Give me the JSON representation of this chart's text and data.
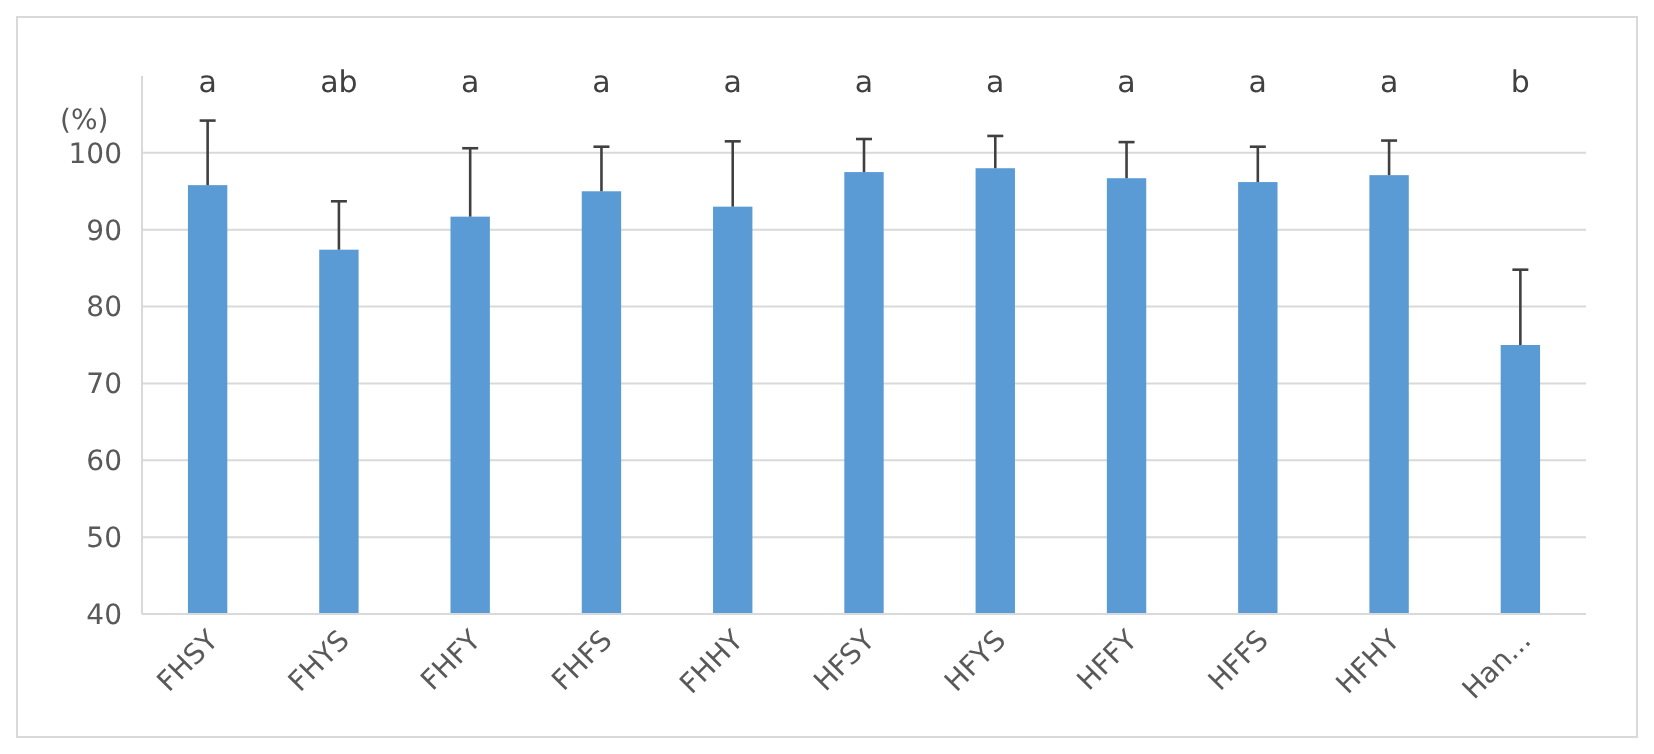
{
  "chart_data": {
    "type": "bar",
    "ylabel": "(%)",
    "categories": [
      "FHSY",
      "FHYS",
      "FHFY",
      "FHFS",
      "FHHY",
      "HFSY",
      "HFYS",
      "HFFY",
      "HFFS",
      "HFHY",
      "Han..."
    ],
    "values": [
      95.8,
      87.4,
      91.7,
      95.0,
      93.0,
      97.5,
      98.0,
      96.7,
      96.2,
      97.1,
      75.0
    ],
    "errors": [
      [
        95.8,
        104.2
      ],
      [
        87.4,
        93.7
      ],
      [
        91.7,
        100.6
      ],
      [
        95.0,
        100.8
      ],
      [
        93.0,
        101.5
      ],
      [
        97.5,
        101.8
      ],
      [
        98.0,
        102.2
      ],
      [
        96.7,
        101.4
      ],
      [
        96.2,
        100.8
      ],
      [
        97.1,
        101.6
      ],
      [
        75.0,
        84.8
      ]
    ],
    "color": "#5b9bd5",
    "ylim": [
      40,
      110
    ],
    "yticks": [
      40,
      50,
      60,
      70,
      80,
      90,
      100
    ],
    "grid": "y",
    "annotations": [
      "a",
      "ab",
      "a",
      "a",
      "a",
      "a",
      "a",
      "a",
      "a",
      "a",
      "b"
    ]
  }
}
